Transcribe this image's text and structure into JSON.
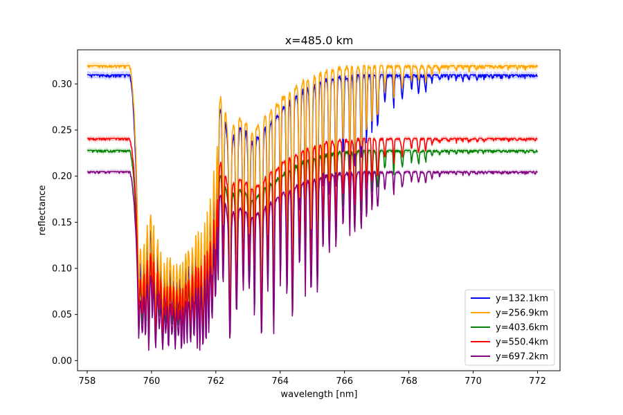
{
  "chart_data": {
    "type": "line",
    "title": "x=485.0 km",
    "xlabel": "wavelength [nm]",
    "ylabel": "reflectance",
    "xlim": [
      757.7,
      772.7
    ],
    "ylim": [
      -0.011,
      0.337
    ],
    "xticks": [
      758,
      760,
      762,
      764,
      766,
      768,
      770,
      772
    ],
    "yticks": [
      0.0,
      0.05,
      0.1,
      0.15,
      0.2,
      0.25,
      0.3
    ],
    "ytick_labels": [
      "0.00",
      "0.05",
      "0.10",
      "0.15",
      "0.20",
      "0.25",
      "0.30"
    ],
    "grid": false,
    "legend_position": "lower right",
    "band_description": "shaded uncertainty band around each line",
    "continuum_end": 759.45,
    "line_pattern": {
      "x": [
        758.0,
        759.3,
        759.45,
        759.6,
        759.8,
        760.0,
        760.2,
        760.4,
        760.6,
        760.8,
        761.0,
        761.2,
        761.4,
        761.6,
        761.8,
        762.0,
        762.2,
        762.4,
        762.55,
        762.7,
        762.85,
        763.0,
        763.15,
        763.3,
        763.5,
        763.7,
        763.9,
        764.1,
        764.3,
        764.5,
        764.7,
        764.9,
        765.1,
        765.3,
        765.5,
        765.7,
        765.9,
        766.1,
        766.3,
        766.5,
        766.7,
        766.9,
        767.1,
        767.3,
        767.5,
        767.7,
        767.9,
        768.1,
        768.3,
        768.5,
        768.7,
        768.9,
        769.1,
        769.3,
        769.5,
        769.7,
        769.9,
        770.1,
        770.3,
        770.5,
        770.7,
        770.9,
        771.1,
        771.3,
        771.5,
        771.7,
        772.0
      ],
      "peak": [
        1.0,
        0.99,
        0.7,
        0.3,
        0.42,
        0.45,
        0.38,
        0.32,
        0.3,
        0.27,
        0.28,
        0.33,
        0.4,
        0.45,
        0.5,
        0.75,
        0.93,
        0.72,
        0.78,
        0.8,
        0.8,
        0.78,
        0.75,
        0.77,
        0.8,
        0.83,
        0.85,
        0.88,
        0.9,
        0.92,
        0.94,
        0.95,
        0.96,
        0.97,
        0.98,
        0.98,
        0.99,
        0.99,
        0.99,
        1.0,
        1.0,
        1.0,
        1.0,
        1.0,
        1.0,
        1.0,
        1.0,
        1.0,
        1.0,
        1.0,
        1.0,
        1.0,
        1.0,
        1.0,
        1.0,
        1.0,
        1.0,
        1.0,
        1.0,
        1.0,
        1.0,
        1.0,
        1.0,
        1.0,
        1.0,
        1.0,
        1.0
      ],
      "trough": [
        1.0,
        0.99,
        0.5,
        0.06,
        0.03,
        0.02,
        0.02,
        0.02,
        0.02,
        0.02,
        0.02,
        0.02,
        0.02,
        0.03,
        0.04,
        0.05,
        0.1,
        0.07,
        0.05,
        0.04,
        0.05,
        0.06,
        0.07,
        0.08,
        0.09,
        0.1,
        0.12,
        0.14,
        0.17,
        0.2,
        0.23,
        0.27,
        0.32,
        0.38,
        0.43,
        0.48,
        0.54,
        0.59,
        0.64,
        0.68,
        0.72,
        0.76,
        0.8,
        0.84,
        0.86,
        0.88,
        0.9,
        0.91,
        0.93,
        0.94,
        0.95,
        0.96,
        0.97,
        0.98,
        0.98,
        0.98,
        0.98,
        0.99,
        0.99,
        0.99,
        0.99,
        0.99,
        0.99,
        0.99,
        0.99,
        0.99,
        0.99
      ]
    },
    "series": [
      {
        "name": "y=132.1km",
        "color": "#0000ff",
        "continuum": 0.31,
        "floor": 0.01
      },
      {
        "name": "y=256.9km",
        "color": "#ffa500",
        "continuum": 0.32,
        "floor": 0.03
      },
      {
        "name": "y=403.6km",
        "color": "#008000",
        "continuum": 0.228,
        "floor": 0.012
      },
      {
        "name": "y=550.4km",
        "color": "#ff0000",
        "continuum": 0.241,
        "floor": 0.02
      },
      {
        "name": "y=697.2km",
        "color": "#800080",
        "continuum": 0.205,
        "floor": 0.003
      }
    ]
  }
}
